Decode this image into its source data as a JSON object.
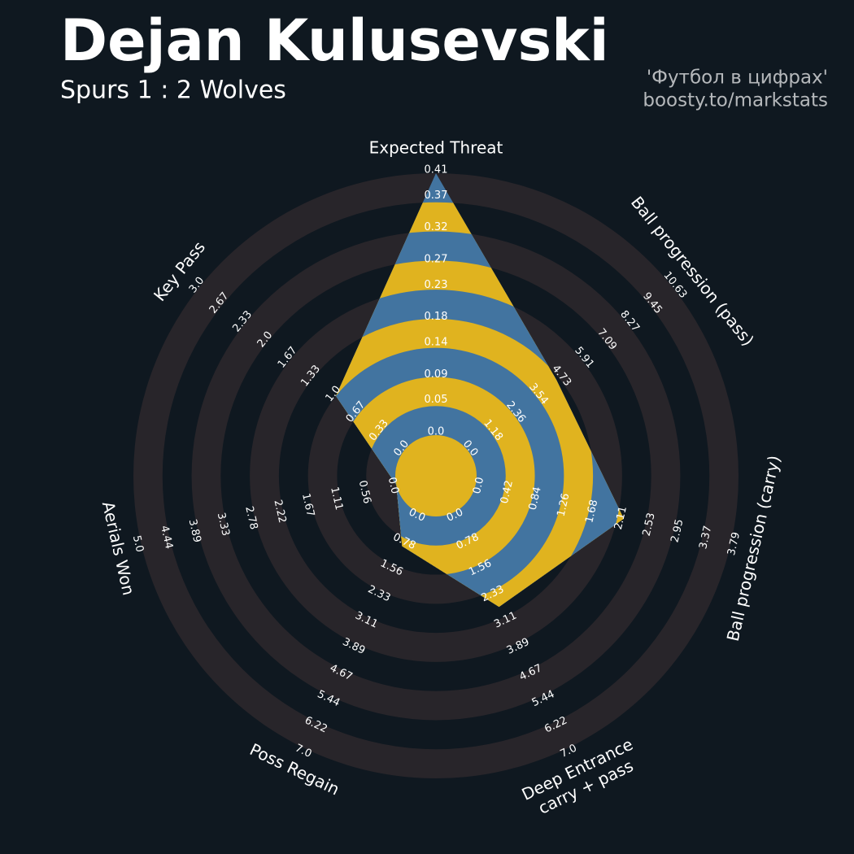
{
  "chart_data": {
    "type": "radar",
    "title": "Dejan Kulusevski",
    "subtitle": "Spurs 1 : 2 Wolves",
    "credits": [
      "'Футбол в цифрах'",
      "boosty.to/markstats"
    ],
    "colors": {
      "polygon": "#4274a0",
      "polygon_alt": "#e0b31f",
      "rings": "#28252a",
      "background": "#0f1820"
    },
    "axes": [
      {
        "name": [
          "Expected Threat"
        ],
        "lim": [
          0,
          0.41
        ],
        "ticks": [
          {
            "value": 0,
            "label": "0.0"
          },
          0.05,
          0.09,
          0.14,
          0.18,
          0.23,
          0.27,
          0.32,
          0.37,
          0.41
        ]
      },
      {
        "name": [
          "Ball progression (pass)"
        ],
        "lim": [
          0,
          10.63
        ],
        "ticks": [
          {
            "value": 0,
            "label": "0.0"
          },
          1.18,
          2.36,
          3.54,
          4.73,
          5.91,
          7.09,
          8.27,
          9.45,
          10.63
        ]
      },
      {
        "name": [
          "Ball progression (carry)"
        ],
        "lim": [
          0,
          3.79
        ],
        "ticks": [
          {
            "value": 0,
            "label": "0.0"
          },
          0.42,
          0.84,
          1.26,
          1.68,
          2.11,
          2.53,
          2.95,
          3.37,
          3.79
        ]
      },
      {
        "name": [
          "Deep Entrance",
          "carry + pass"
        ],
        "lim": [
          0,
          7
        ],
        "ticks": [
          {
            "value": 0,
            "label": "0.0"
          },
          0.78,
          1.56,
          2.33,
          3.11,
          3.89,
          4.67,
          5.44,
          6.22,
          {
            "value": 7,
            "label": "7.0"
          }
        ]
      },
      {
        "name": [
          "Poss Regain"
        ],
        "lim": [
          0,
          7
        ],
        "ticks": [
          {
            "value": 0,
            "label": "0.0"
          },
          0.78,
          1.56,
          2.33,
          3.11,
          3.89,
          4.67,
          5.44,
          6.22,
          {
            "value": 7,
            "label": "7.0"
          }
        ]
      },
      {
        "name": [
          "Aerials Won"
        ],
        "lim": [
          0,
          5
        ],
        "ticks": [
          {
            "value": 0,
            "label": "0.0"
          },
          0.56,
          1.11,
          1.67,
          2.22,
          2.78,
          3.33,
          3.89,
          4.44,
          {
            "value": 5,
            "label": "5.0"
          }
        ]
      },
      {
        "name": [
          "Key Pass"
        ],
        "lim": [
          0,
          3
        ],
        "ticks": [
          {
            "value": 0,
            "label": "0.0"
          },
          0.33,
          0.67,
          {
            "value": 1,
            "label": "1.0"
          },
          1.33,
          1.67,
          {
            "value": 2,
            "label": "2.0"
          },
          2.33,
          2.67,
          {
            "value": 3,
            "label": "3.0"
          }
        ]
      }
    ],
    "values": [
      0.41,
      4.6,
      2.2,
      2.8,
      1.0,
      0,
      1.0
    ]
  }
}
